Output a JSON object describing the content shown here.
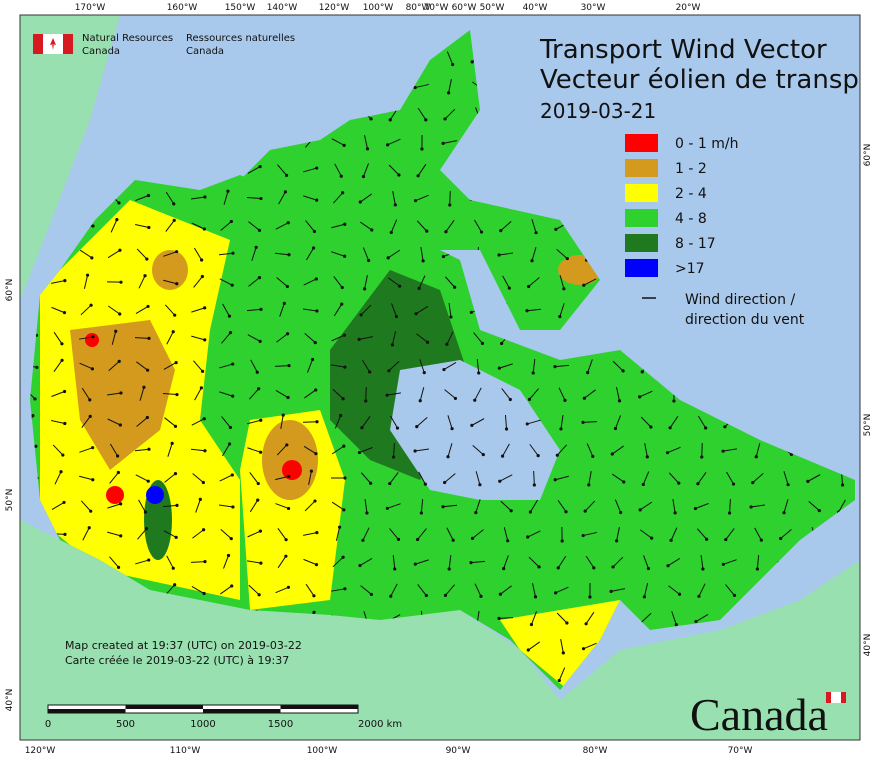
{
  "header": {
    "agency_en": "Natural Resources",
    "country_en": "Canada",
    "agency_fr": "Ressources naturelles",
    "country_fr": "Canada"
  },
  "title": {
    "en": "Transport Wind Vector",
    "fr": "Vecteur éolien de transp",
    "date": "2019-03-21"
  },
  "legend": {
    "items": [
      {
        "label": "0 - 1 m/h",
        "color": "#ff0000"
      },
      {
        "label": "1 - 2",
        "color": "#d49a1e"
      },
      {
        "label": "2 - 4",
        "color": "#ffff00"
      },
      {
        "label": "4 - 8",
        "color": "#2ed12e"
      },
      {
        "label": "8 - 17",
        "color": "#1f7a1f"
      },
      {
        "label": ">17",
        "color": "#0000ff"
      }
    ],
    "arrow_label_en": "Wind direction /",
    "arrow_label_fr": "direction du vent"
  },
  "graticule": {
    "top": [
      "170°W",
      "160°W",
      "150°W",
      "140°W",
      "120°W",
      "100°W",
      "80°W",
      "70°W",
      "60°W",
      "50°W",
      "40°W",
      "30°W",
      "20°W"
    ],
    "bottom": [
      "120°W",
      "110°W",
      "100°W",
      "90°W",
      "80°W",
      "70°W"
    ],
    "left": [
      "60°N",
      "50°N",
      "40°N"
    ],
    "right": [
      "60°N",
      "50°N",
      "40°N"
    ]
  },
  "footer": {
    "created_en": "Map created at 19:37 (UTC) on 2019-03-22",
    "created_fr": "Carte créée le 2019-03-22 (UTC) à 19:37"
  },
  "scale_bar": {
    "labels": [
      "0",
      "500",
      "1000",
      "1500",
      "2000 km"
    ]
  },
  "wordmark": "Canada"
}
